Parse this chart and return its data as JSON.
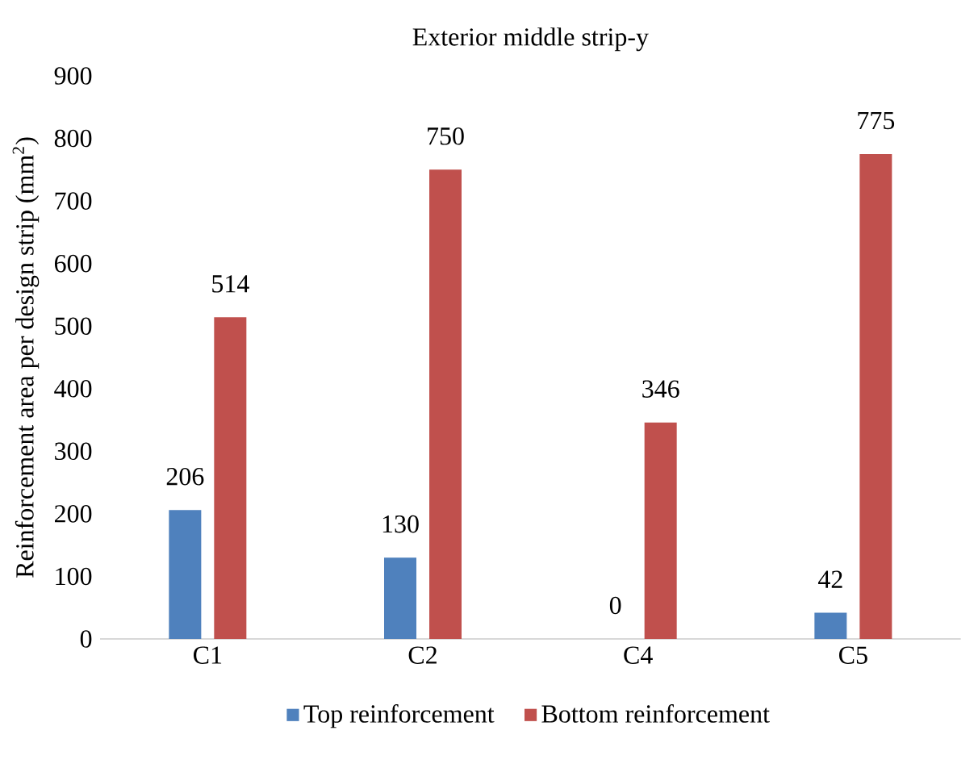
{
  "chart_data": {
    "type": "bar",
    "title": "Exterior middle strip-y",
    "ylabel": "Reinforcement area per design strip (mm$^{2}$)",
    "categories": [
      "C1",
      "C2",
      "C4",
      "C5"
    ],
    "series": [
      {
        "name": "Top reinforcement",
        "color": "#4f81bd",
        "values": [
          206,
          130,
          0,
          42
        ]
      },
      {
        "name": "Bottom reinforcement",
        "color": "#c0504d",
        "values": [
          514,
          750,
          346,
          775
        ]
      }
    ],
    "ylim": [
      0,
      900
    ],
    "yticks": [
      0,
      100,
      200,
      300,
      400,
      500,
      600,
      700,
      800,
      900
    ],
    "data_labels": true,
    "legend": "bottom"
  }
}
